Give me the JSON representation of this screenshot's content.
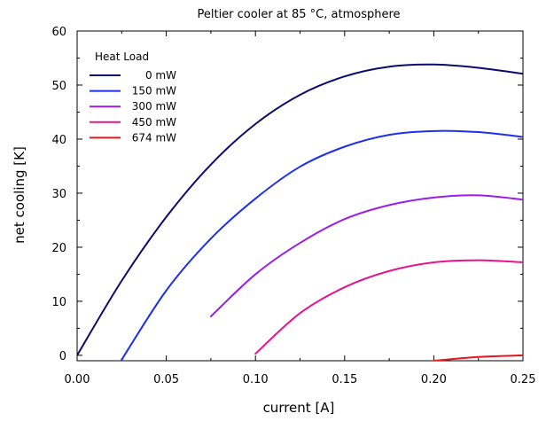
{
  "chart_data": {
    "type": "line",
    "title": "Peltier cooler at 85 °C, atmosphere",
    "xlabel": "current [A]",
    "ylabel": "net cooling [K]",
    "xlim": [
      0,
      0.25
    ],
    "ylim": [
      -1,
      60
    ],
    "x_ticks": [
      "0.00",
      "0.05",
      "0.10",
      "0.15",
      "0.20",
      "0.25"
    ],
    "y_ticks": [
      "0",
      "10",
      "20",
      "30",
      "40",
      "50",
      "60"
    ],
    "grid": false,
    "legend": {
      "title": "Heat Load",
      "position": "top-left"
    },
    "x": [
      0.0,
      0.025,
      0.05,
      0.075,
      0.1,
      0.125,
      0.15,
      0.175,
      0.2,
      0.225,
      0.25
    ],
    "series": [
      {
        "name": "0 mW",
        "color": "#0b0b6e",
        "values": [
          0,
          13.8,
          25.6,
          35.3,
          42.8,
          48.2,
          51.6,
          53.4,
          53.8,
          53.2,
          52.1
        ]
      },
      {
        "name": "150 mW",
        "color": "#1f2ff0",
        "values": [
          null,
          -0.8,
          12.0,
          21.6,
          29.0,
          34.9,
          38.6,
          40.8,
          41.5,
          41.3,
          40.4
        ]
      },
      {
        "name": "300 mW",
        "color": "#9a1ee8",
        "values": [
          null,
          null,
          null,
          7.2,
          15.0,
          20.8,
          25.2,
          27.8,
          29.2,
          29.6,
          28.8
        ]
      },
      {
        "name": "450 mW",
        "color": "#e6148c",
        "values": [
          null,
          null,
          null,
          null,
          0.3,
          7.8,
          12.6,
          15.6,
          17.2,
          17.6,
          17.2
        ]
      },
      {
        "name": "674 mW",
        "color": "#e8141e",
        "values": [
          null,
          null,
          null,
          null,
          null,
          null,
          null,
          null,
          -1.0,
          -0.3,
          0.0
        ]
      }
    ]
  }
}
